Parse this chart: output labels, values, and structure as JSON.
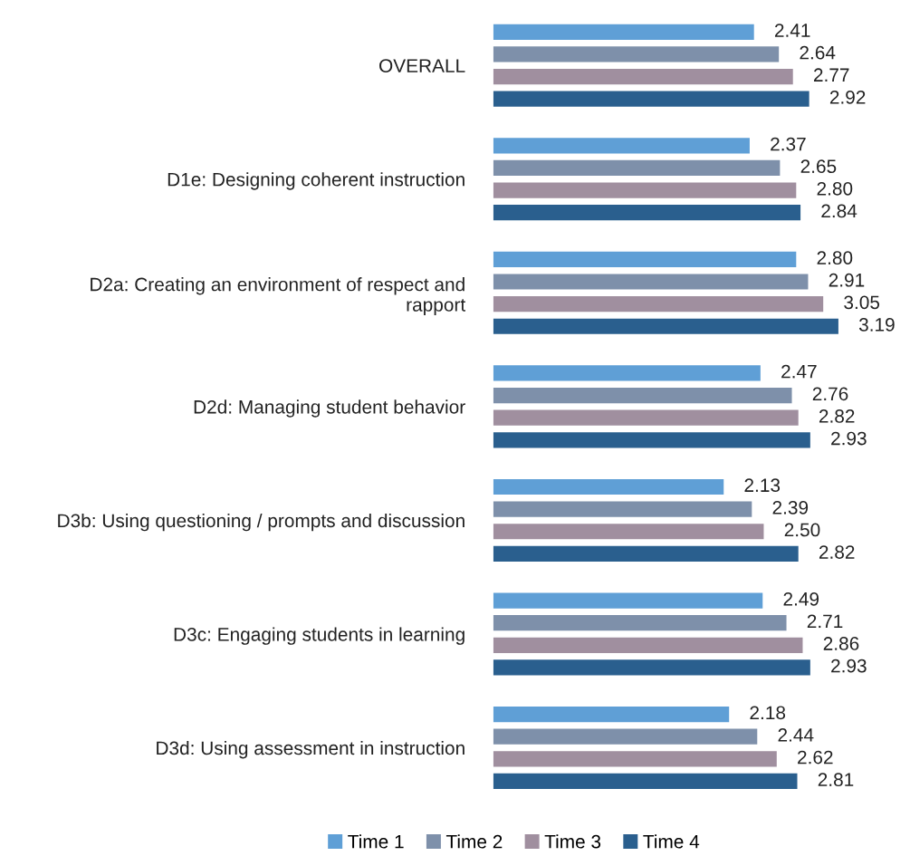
{
  "chart_data": {
    "type": "bar",
    "orientation": "horizontal",
    "legend": "bottom",
    "tick_labels": "y",
    "grid": false,
    "categories": [
      "OVERALL",
      "D1e: Designing coherent instruction",
      "D2a: Creating an environment of respect and\nrapport",
      "D2d: Managing student behavior",
      "D3b: Using questioning / prompts and discussion",
      "D3c: Engaging students in learning",
      "D3d: Using assessment in instruction"
    ],
    "series": [
      {
        "name": "Time 1",
        "color": "#5f9fd6",
        "values": [
          2.41,
          2.37,
          2.8,
          2.47,
          2.13,
          2.49,
          2.18
        ],
        "value_labels": [
          "2.41",
          "2.37",
          "2.80",
          "2.47",
          "2.13",
          "2.49",
          "2.18"
        ]
      },
      {
        "name": "Time 2",
        "color": "#7e90aa",
        "values": [
          2.64,
          2.65,
          2.91,
          2.76,
          2.39,
          2.71,
          2.44
        ],
        "value_labels": [
          "2.64",
          "2.65",
          "2.91",
          "2.76",
          "2.39",
          "2.71",
          "2.44"
        ]
      },
      {
        "name": "Time 3",
        "color": "#a08f9f",
        "values": [
          2.77,
          2.8,
          3.05,
          2.82,
          2.5,
          2.86,
          2.62
        ],
        "value_labels": [
          "2.77",
          "2.80",
          "3.05",
          "2.82",
          "2.50",
          "2.86",
          "2.62"
        ]
      },
      {
        "name": "Time 4",
        "color": "#2a5f8e",
        "values": [
          2.92,
          2.84,
          3.19,
          2.93,
          2.82,
          2.93,
          2.81
        ],
        "value_labels": [
          "2.92",
          "2.84",
          "3.19",
          "2.93",
          "2.82",
          "2.93",
          "2.81"
        ]
      }
    ]
  }
}
